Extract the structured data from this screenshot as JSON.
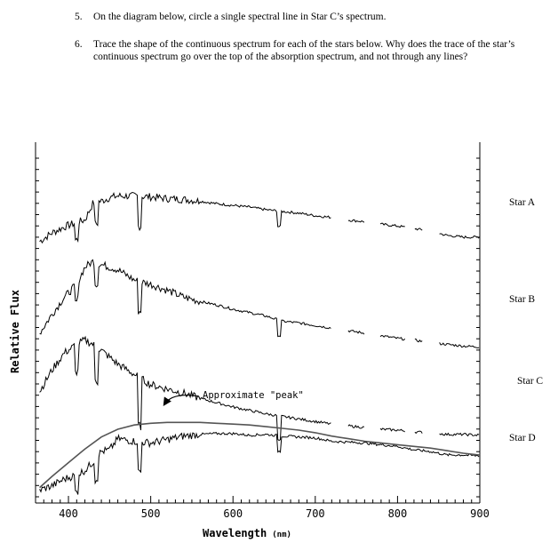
{
  "questions": [
    {
      "number": "5.",
      "text": "On the diagram below, circle a single spectral line in Star C’s spectrum."
    },
    {
      "number": "6.",
      "text": "Trace the shape of the continuous spectrum for each of the stars below. Why does the trace of the star’s continuous spectrum go over the top of the absorption spectrum, and not through any lines?"
    }
  ],
  "chart_data": {
    "type": "line",
    "title": "",
    "xlabel": "Wavelength",
    "xlabel_unit": "(nm)",
    "ylabel": "Relative Flux",
    "xlim": [
      360,
      900
    ],
    "xticks": [
      400,
      500,
      600,
      700,
      800,
      900
    ],
    "grid": false,
    "series": [
      {
        "name": "Star A",
        "x": [
          365,
          380,
          395,
          410,
          420,
          430,
          440,
          450,
          460,
          480,
          500,
          520,
          540,
          560,
          580,
          600,
          620,
          640,
          660,
          680,
          700,
          720,
          740,
          760,
          780,
          800,
          820,
          840,
          860,
          880,
          900
        ],
        "y": [
          3.05,
          3.15,
          3.22,
          3.27,
          3.3,
          3.5,
          3.52,
          3.56,
          3.58,
          3.58,
          3.57,
          3.55,
          3.54,
          3.52,
          3.49,
          3.47,
          3.45,
          3.42,
          3.4,
          3.38,
          3.35,
          3.33,
          3.3,
          3.28,
          3.25,
          3.23,
          3.2,
          3.17,
          3.12,
          3.1,
          3.1
        ]
      },
      {
        "name": "Star B",
        "x": [
          365,
          380,
          395,
          410,
          420,
          430,
          440,
          450,
          460,
          480,
          500,
          520,
          540,
          560,
          580,
          600,
          620,
          640,
          660,
          680,
          700,
          720,
          740,
          760,
          780,
          800,
          820,
          840,
          860,
          880,
          900
        ],
        "y": [
          1.98,
          2.2,
          2.4,
          2.55,
          2.75,
          2.82,
          2.78,
          2.75,
          2.72,
          2.6,
          2.55,
          2.48,
          2.4,
          2.35,
          2.31,
          2.26,
          2.22,
          2.18,
          2.12,
          2.1,
          2.07,
          2.04,
          2.01,
          1.98,
          1.95,
          1.92,
          1.9,
          1.87,
          1.85,
          1.83,
          1.82
        ]
      },
      {
        "name": "Star C",
        "x": [
          365,
          380,
          395,
          410,
          420,
          430,
          440,
          450,
          460,
          480,
          500,
          520,
          540,
          560,
          580,
          600,
          620,
          640,
          660,
          680,
          700,
          720,
          740,
          760,
          780,
          800,
          820,
          840,
          860,
          880,
          900
        ],
        "y": [
          1.3,
          1.55,
          1.75,
          1.85,
          1.9,
          1.85,
          1.78,
          1.7,
          1.62,
          1.5,
          1.38,
          1.33,
          1.28,
          1.22,
          1.17,
          1.12,
          1.08,
          1.04,
          1.01,
          0.98,
          0.95,
          0.92,
          0.9,
          0.88,
          0.86,
          0.85,
          0.83,
          0.82,
          0.8,
          0.8,
          0.79
        ]
      },
      {
        "name": "Star D",
        "x": [
          365,
          380,
          395,
          410,
          420,
          430,
          440,
          450,
          460,
          480,
          500,
          520,
          540,
          560,
          580,
          600,
          620,
          640,
          660,
          680,
          700,
          720,
          740,
          760,
          780,
          800,
          820,
          840,
          860,
          880,
          900
        ],
        "y": [
          0.15,
          0.2,
          0.28,
          0.33,
          0.38,
          0.48,
          0.6,
          0.62,
          0.75,
          0.72,
          0.7,
          0.74,
          0.78,
          0.8,
          0.81,
          0.81,
          0.79,
          0.8,
          0.78,
          0.77,
          0.76,
          0.72,
          0.71,
          0.7,
          0.68,
          0.66,
          0.62,
          0.6,
          0.56,
          0.56,
          0.55
        ]
      }
    ],
    "continuum_fit": {
      "series": "Star D",
      "x": [
        365,
        380,
        400,
        420,
        440,
        460,
        480,
        500,
        520,
        540,
        560,
        580,
        600,
        620,
        640,
        660,
        680,
        700,
        720,
        740,
        760,
        780,
        800,
        820,
        840,
        860,
        880,
        900
      ],
      "y": [
        0.18,
        0.31,
        0.47,
        0.63,
        0.77,
        0.86,
        0.91,
        0.93,
        0.94,
        0.94,
        0.94,
        0.93,
        0.92,
        0.91,
        0.89,
        0.87,
        0.85,
        0.82,
        0.78,
        0.75,
        0.72,
        0.7,
        0.68,
        0.66,
        0.64,
        0.61,
        0.58,
        0.56
      ]
    },
    "annotations": [
      {
        "text": "Approximate \"peak\"",
        "x": 505
      }
    ]
  }
}
